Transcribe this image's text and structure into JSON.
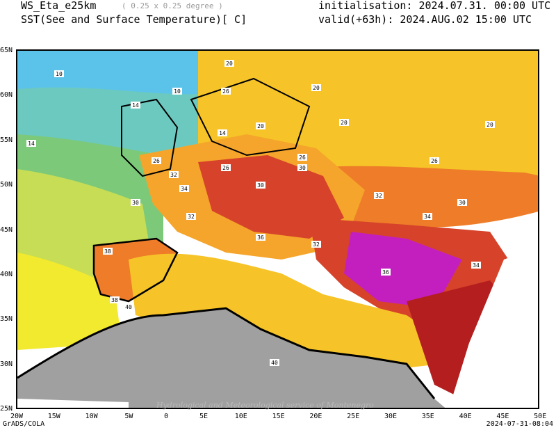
{
  "header": {
    "model": "WS_Eta_e25km",
    "resolution": "( 0.25 x 0.25 degree )",
    "field": "SST(See and Surface Temperature)[ C]",
    "init": "initialisation: 2024.07.31. 00:00 UTC",
    "valid": "valid(+63h): 2024.AUG.02 15:00 UTC"
  },
  "lat_labels": [
    "65N",
    "60N",
    "55N",
    "50N",
    "45N",
    "40N",
    "35N",
    "30N",
    "25N"
  ],
  "lon_labels": [
    "20W",
    "15W",
    "10W",
    "5W",
    "0",
    "5E",
    "10E",
    "15E",
    "20E",
    "25E",
    "30E",
    "35E",
    "40E",
    "45E",
    "50E"
  ],
  "footer": {
    "left": "GrADS/COLA",
    "right": "2024-07-31-08:04",
    "watermark": "Hydrological and Meteorological service of Montenegro"
  },
  "contour_labels": [
    "10",
    "10",
    "14",
    "14",
    "14",
    "20",
    "20",
    "20",
    "20",
    "20",
    "26",
    "26",
    "26",
    "26",
    "26",
    "30",
    "30",
    "30",
    "30",
    "32",
    "32",
    "32",
    "32",
    "34",
    "34",
    "34",
    "36",
    "36",
    "38",
    "38",
    "40",
    "40"
  ],
  "colors": {
    "c10": "#5bc3ea",
    "c14": "#6bc9c0",
    "c17": "#7cc97a",
    "c20": "#c6dd55",
    "c23": "#f2ea2e",
    "c26": "#f6c428",
    "c28": "#f5a52b",
    "c30": "#ee7c28",
    "c32": "#d6432a",
    "c34": "#b41e1e",
    "c36": "#c31fbf",
    "c38": "#d97ed8",
    "land_africa": "#a0a0a0"
  }
}
